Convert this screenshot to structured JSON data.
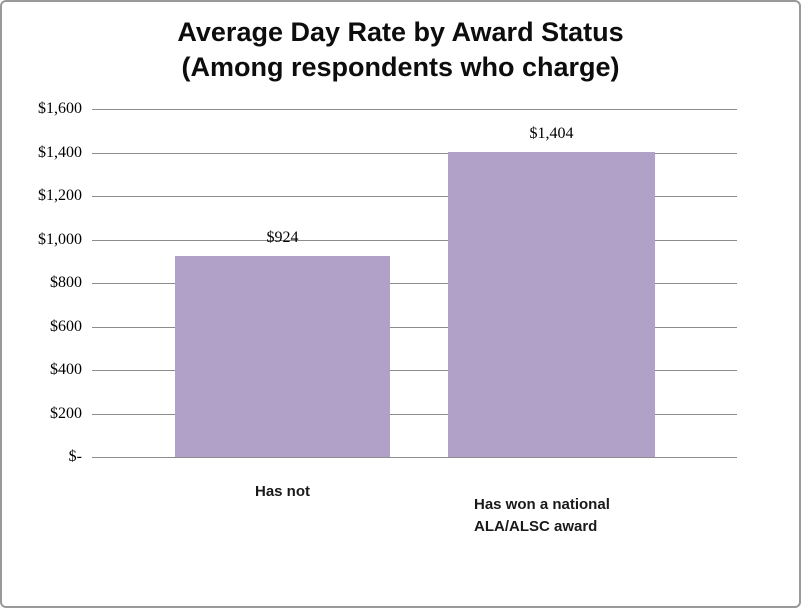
{
  "frame": {
    "background": "#ffffff",
    "border_color": "#999999"
  },
  "chart_data": {
    "type": "bar",
    "title": "Average Day Rate by Award Status",
    "subtitle": "(Among respondents who charge)",
    "categories": [
      "Has not",
      "Has won a national\nALA/ALSC award"
    ],
    "values": [
      924,
      1404
    ],
    "value_labels": [
      "$924",
      "$1,404"
    ],
    "y_ticks": [
      {
        "value": 1600,
        "label": "$1,600"
      },
      {
        "value": 1400,
        "label": "$1,400"
      },
      {
        "value": 1200,
        "label": "$1,200"
      },
      {
        "value": 1000,
        "label": "$1,000"
      },
      {
        "value": 800,
        "label": "$800"
      },
      {
        "value": 600,
        "label": "$600"
      },
      {
        "value": 400,
        "label": "$400"
      },
      {
        "value": 200,
        "label": "$200"
      },
      {
        "value": 0,
        "label": "$-"
      }
    ],
    "ylim": [
      0,
      1600
    ],
    "xlabel": "",
    "ylabel": "",
    "legend": "none",
    "grid": "horizontal",
    "bar_color": "#B1A0C7",
    "gridline_color": "#8C8C8C",
    "text_color": "#000000"
  }
}
